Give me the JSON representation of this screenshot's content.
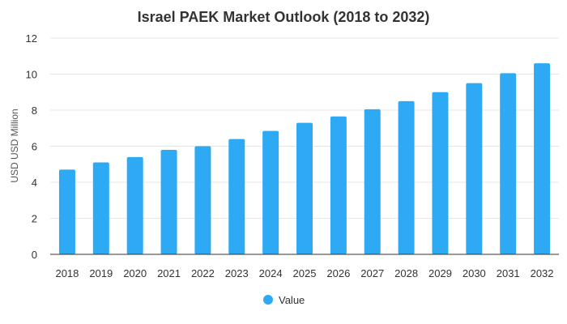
{
  "chart_data": {
    "type": "bar",
    "title": "Israel PAEK Market Outlook (2018 to 2032)",
    "xlabel": "",
    "ylabel": "USD USD Million",
    "ylim": [
      0,
      12
    ],
    "yticks": [
      "0",
      "2",
      "4",
      "6",
      "8",
      "10",
      "12"
    ],
    "grid": true,
    "legend_position": "bottom",
    "categories": [
      "2018",
      "2019",
      "2020",
      "2021",
      "2022",
      "2023",
      "2024",
      "2025",
      "2026",
      "2027",
      "2028",
      "2029",
      "2030",
      "2031",
      "2032"
    ],
    "series": [
      {
        "name": "Value",
        "color": "#2eaaf5",
        "values": [
          4.7,
          5.1,
          5.4,
          5.8,
          6.0,
          6.4,
          6.85,
          7.3,
          7.65,
          8.05,
          8.5,
          9.0,
          9.5,
          10.05,
          10.6
        ]
      }
    ]
  }
}
